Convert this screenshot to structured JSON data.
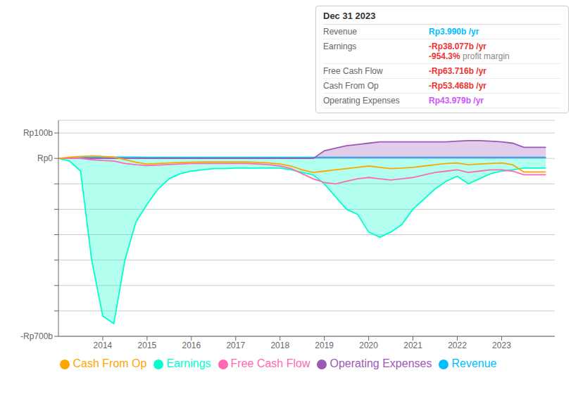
{
  "chart_data": {
    "type": "line",
    "x": [
      2013.0,
      2013.25,
      2013.5,
      2013.75,
      2014.0,
      2014.25,
      2014.5,
      2014.75,
      2015.0,
      2015.25,
      2015.5,
      2015.75,
      2016.0,
      2016.25,
      2016.5,
      2016.75,
      2017.0,
      2017.25,
      2017.5,
      2017.75,
      2018.0,
      2018.25,
      2018.5,
      2018.75,
      2019.0,
      2019.25,
      2019.5,
      2019.75,
      2020.0,
      2020.25,
      2020.5,
      2020.75,
      2021.0,
      2021.25,
      2021.5,
      2021.75,
      2022.0,
      2022.25,
      2022.5,
      2022.75,
      2023.0,
      2023.25,
      2023.5,
      2023.75,
      2024.0
    ],
    "series": [
      {
        "name": "Revenue",
        "color": "#00bfff",
        "type": "area",
        "values": [
          0,
          2,
          3,
          4,
          5,
          5,
          5,
          5,
          4,
          4,
          4,
          4,
          4,
          4,
          4,
          4,
          4,
          4,
          4,
          4,
          4,
          4,
          4,
          4,
          4,
          4,
          4,
          4,
          4,
          4,
          4,
          4,
          4,
          4,
          4,
          4,
          4,
          4,
          4,
          4,
          4,
          4,
          4,
          4,
          4
        ]
      },
      {
        "name": "Earnings",
        "color": "#00ffcc",
        "type": "area",
        "values": [
          0,
          -10,
          -50,
          -400,
          -620,
          -650,
          -400,
          -250,
          -180,
          -120,
          -80,
          -60,
          -50,
          -45,
          -40,
          -40,
          -38,
          -38,
          -38,
          -38,
          -38,
          -45,
          -55,
          -65,
          -100,
          -150,
          -200,
          -220,
          -290,
          -310,
          -290,
          -260,
          -200,
          -160,
          -120,
          -90,
          -70,
          -100,
          -80,
          -60,
          -50,
          -45,
          -38,
          -38,
          -38
        ]
      },
      {
        "name": "Free Cash Flow",
        "color": "#ff69b4",
        "type": "line",
        "values": [
          0,
          0,
          0,
          -5,
          -8,
          -10,
          -20,
          -25,
          -28,
          -26,
          -24,
          -22,
          -20,
          -20,
          -20,
          -20,
          -20,
          -20,
          -22,
          -25,
          -30,
          -40,
          -60,
          -80,
          -95,
          -100,
          -90,
          -80,
          -75,
          -80,
          -85,
          -80,
          -75,
          -65,
          -55,
          -50,
          -45,
          -55,
          -50,
          -45,
          -45,
          -50,
          -64,
          -64,
          -64
        ]
      },
      {
        "name": "Cash From Op",
        "color": "#ffa500",
        "type": "line",
        "values": [
          0,
          5,
          8,
          10,
          8,
          5,
          -5,
          -15,
          -22,
          -20,
          -18,
          -16,
          -15,
          -14,
          -14,
          -14,
          -14,
          -14,
          -16,
          -18,
          -22,
          -30,
          -45,
          -55,
          -50,
          -45,
          -40,
          -35,
          -30,
          -35,
          -40,
          -38,
          -35,
          -30,
          -25,
          -20,
          -18,
          -25,
          -22,
          -20,
          -18,
          -25,
          -53,
          -53,
          -53
        ]
      },
      {
        "name": "Operating Expenses",
        "color": "#9b59b6",
        "type": "area",
        "values": [
          0,
          0,
          0,
          0,
          0,
          0,
          0,
          0,
          0,
          0,
          0,
          0,
          0,
          0,
          0,
          0,
          0,
          0,
          0,
          0,
          0,
          0,
          0,
          0,
          30,
          40,
          50,
          55,
          60,
          65,
          65,
          65,
          65,
          65,
          65,
          65,
          68,
          70,
          70,
          68,
          65,
          60,
          44,
          44,
          44
        ]
      }
    ],
    "xlim": [
      2013.0,
      2024.2
    ],
    "xticks": [
      2014,
      2015,
      2016,
      2017,
      2018,
      2019,
      2020,
      2021,
      2022,
      2023
    ],
    "ylim": [
      -700,
      150
    ],
    "yticks": [
      {
        "value": 100,
        "label": "Rp100b"
      },
      {
        "value": 0,
        "label": "Rp0"
      },
      {
        "value": -100,
        "label": null
      },
      {
        "value": -200,
        "label": null
      },
      {
        "value": -300,
        "label": null
      },
      {
        "value": -400,
        "label": null
      },
      {
        "value": -500,
        "label": null
      },
      {
        "value": -600,
        "label": null
      },
      {
        "value": -700,
        "label": "-Rp700b"
      }
    ],
    "grid": true,
    "legend": "bottom",
    "annotations": {
      "title": "Dec 31 2023",
      "rows": [
        {
          "label": "Revenue",
          "value": "Rp3.990b /yr",
          "color": "#00bfff",
          "extra": null
        },
        {
          "label": "Earnings",
          "value": "-Rp38.077b /yr",
          "color": "#ee3333",
          "extra": {
            "value": "-954.3%",
            "color": "#ee3333",
            "text": " profit margin"
          }
        },
        {
          "label": "Free Cash Flow",
          "value": "-Rp63.716b /yr",
          "color": "#ee3333",
          "extra": null
        },
        {
          "label": "Cash From Op",
          "value": "-Rp53.468b /yr",
          "color": "#ee3333",
          "extra": null
        },
        {
          "label": "Operating Expenses",
          "value": "Rp43.979b /yr",
          "color": "#cc55ff",
          "extra": null
        }
      ]
    }
  }
}
